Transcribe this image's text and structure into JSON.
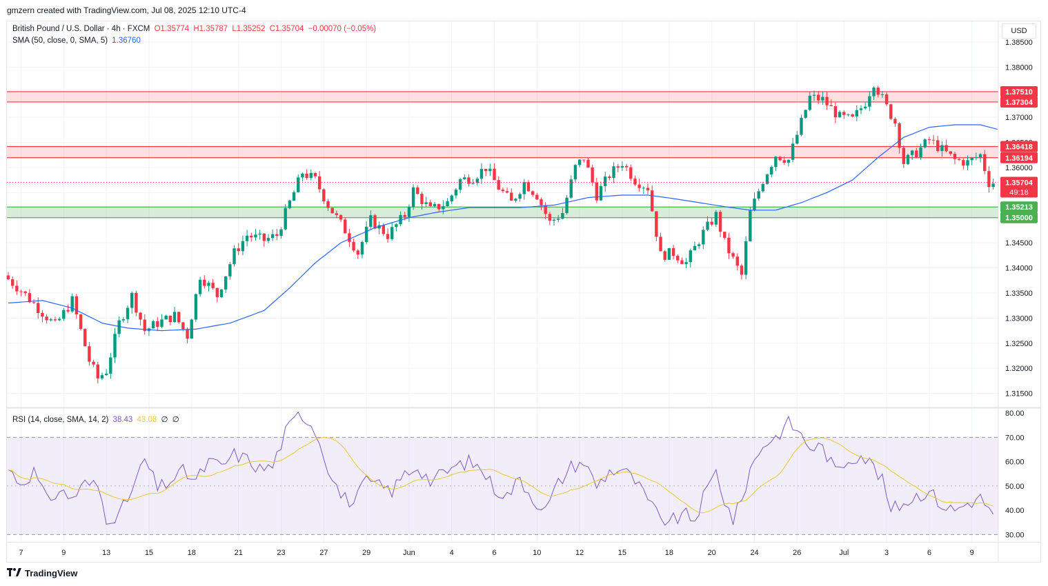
{
  "header": {
    "created_by": "gmzern created with TradingView.com, Jul 08, 2025 12:10 UTC-4"
  },
  "legend": {
    "symbol": "British Pound / U.S. Dollar · 4h · FXCM",
    "open": "O1.35774",
    "high": "H1.35787",
    "low": "L1.35252",
    "close": "C1.35704",
    "change": "−0.00070 (−0.05%)",
    "sma_label": "SMA (50, close, 0, SMA, 5)",
    "sma_value": "1.36760",
    "rsi_label": "RSI (14, close, SMA, 14, 2)",
    "rsi_value": "38.43",
    "rsi_ma_value": "43.08",
    "rsi_extra1": "∅",
    "rsi_extra2": "∅"
  },
  "currency_button": "USD",
  "footer": {
    "brand": "TradingView",
    "logo_icon": "tradingview-logo-icon"
  },
  "colors": {
    "up": "#089981",
    "down": "#f23645",
    "sma": "#2962ff",
    "rsi": "#7e57c2",
    "rsi_ma": "#e9c92f",
    "resistance_zone": "#f23645",
    "support_zone": "#4caf50"
  },
  "chart_data": {
    "type": "candlestick",
    "symbol": "GBP/USD",
    "timeframe": "4h",
    "y_ticks": [
      "1.38500",
      "1.38000",
      "1.37500",
      "1.37000",
      "1.36500",
      "1.36000",
      "1.35500",
      "1.35000",
      "1.34500",
      "1.34000",
      "1.33500",
      "1.33000",
      "1.32500",
      "1.32000",
      "1.31500"
    ],
    "ylim": [
      1.3122,
      1.3891
    ],
    "x_ticks": [
      {
        "label": "7",
        "bar": 3
      },
      {
        "label": "9",
        "bar": 13
      },
      {
        "label": "13",
        "bar": 23
      },
      {
        "label": "15",
        "bar": 33
      },
      {
        "label": "18",
        "bar": 43
      },
      {
        "label": "21",
        "bar": 54
      },
      {
        "label": "23",
        "bar": 64
      },
      {
        "label": "27",
        "bar": 74
      },
      {
        "label": "29",
        "bar": 84
      },
      {
        "label": "Jun",
        "bar": 94
      },
      {
        "label": "4",
        "bar": 104
      },
      {
        "label": "6",
        "bar": 114
      },
      {
        "label": "10",
        "bar": 124
      },
      {
        "label": "12",
        "bar": 134
      },
      {
        "label": "15",
        "bar": 144
      },
      {
        "label": "18",
        "bar": 155
      },
      {
        "label": "20",
        "bar": 165
      },
      {
        "label": "24",
        "bar": 175
      },
      {
        "label": "26",
        "bar": 185
      },
      {
        "label": "Jul",
        "bar": 196
      },
      {
        "label": "3",
        "bar": 206
      },
      {
        "label": "6",
        "bar": 216
      },
      {
        "label": "9",
        "bar": 226
      }
    ],
    "anchors": [
      [
        0,
        1.3385
      ],
      [
        4,
        1.3355
      ],
      [
        8,
        1.332
      ],
      [
        12,
        1.3285
      ],
      [
        16,
        1.3335
      ],
      [
        20,
        1.3215
      ],
      [
        22,
        1.318
      ],
      [
        24,
        1.3195
      ],
      [
        27,
        1.329
      ],
      [
        30,
        1.3345
      ],
      [
        33,
        1.3275
      ],
      [
        36,
        1.329
      ],
      [
        40,
        1.3305
      ],
      [
        43,
        1.3265
      ],
      [
        46,
        1.3385
      ],
      [
        50,
        1.3345
      ],
      [
        54,
        1.343
      ],
      [
        57,
        1.3465
      ],
      [
        61,
        1.3455
      ],
      [
        64,
        1.3465
      ],
      [
        67,
        1.353
      ],
      [
        70,
        1.359
      ],
      [
        73,
        1.3575
      ],
      [
        76,
        1.3525
      ],
      [
        80,
        1.3475
      ],
      [
        83,
        1.343
      ],
      [
        86,
        1.3495
      ],
      [
        90,
        1.3465
      ],
      [
        94,
        1.3505
      ],
      [
        96,
        1.3555
      ],
      [
        100,
        1.3515
      ],
      [
        104,
        1.353
      ],
      [
        107,
        1.3575
      ],
      [
        110,
        1.358
      ],
      [
        113,
        1.36
      ],
      [
        116,
        1.356
      ],
      [
        119,
        1.353
      ],
      [
        122,
        1.357
      ],
      [
        125,
        1.3545
      ],
      [
        128,
        1.349
      ],
      [
        131,
        1.351
      ],
      [
        134,
        1.36
      ],
      [
        136,
        1.362
      ],
      [
        139,
        1.3545
      ],
      [
        142,
        1.3585
      ],
      [
        145,
        1.361
      ],
      [
        148,
        1.3575
      ],
      [
        151,
        1.356
      ],
      [
        154,
        1.3425
      ],
      [
        157,
        1.343
      ],
      [
        160,
        1.341
      ],
      [
        164,
        1.347
      ],
      [
        167,
        1.3505
      ],
      [
        169,
        1.345
      ],
      [
        172,
        1.34
      ],
      [
        173,
        1.3385
      ],
      [
        175,
        1.351
      ],
      [
        178,
        1.3575
      ],
      [
        181,
        1.3625
      ],
      [
        184,
        1.3615
      ],
      [
        186,
        1.3665
      ],
      [
        189,
        1.374
      ],
      [
        192,
        1.3735
      ],
      [
        196,
        1.37
      ],
      [
        199,
        1.3695
      ],
      [
        202,
        1.373
      ],
      [
        204,
        1.377
      ],
      [
        207,
        1.372
      ],
      [
        209,
        1.369
      ],
      [
        211,
        1.361
      ],
      [
        214,
        1.363
      ],
      [
        217,
        1.3655
      ],
      [
        220,
        1.3635
      ],
      [
        223,
        1.3615
      ],
      [
        226,
        1.361
      ],
      [
        229,
        1.3625
      ],
      [
        231,
        1.357
      ]
    ],
    "bars_visible": 232,
    "sma": {
      "name": "SMA (50, close, 0, SMA, 5)",
      "last": 1.3676,
      "anchors": [
        [
          0,
          1.333
        ],
        [
          8,
          1.3335
        ],
        [
          15,
          1.332
        ],
        [
          22,
          1.329
        ],
        [
          28,
          1.328
        ],
        [
          36,
          1.3275
        ],
        [
          44,
          1.3278
        ],
        [
          52,
          1.329
        ],
        [
          60,
          1.3315
        ],
        [
          66,
          1.336
        ],
        [
          72,
          1.341
        ],
        [
          78,
          1.345
        ],
        [
          86,
          1.348
        ],
        [
          94,
          1.35
        ],
        [
          100,
          1.351
        ],
        [
          108,
          1.352
        ],
        [
          114,
          1.352
        ],
        [
          120,
          1.352
        ],
        [
          128,
          1.3525
        ],
        [
          136,
          1.354
        ],
        [
          144,
          1.3545
        ],
        [
          150,
          1.3545
        ],
        [
          156,
          1.3538
        ],
        [
          162,
          1.353
        ],
        [
          168,
          1.3522
        ],
        [
          174,
          1.3515
        ],
        [
          180,
          1.3515
        ],
        [
          186,
          1.353
        ],
        [
          192,
          1.355
        ],
        [
          198,
          1.3575
        ],
        [
          204,
          1.362
        ],
        [
          210,
          1.366
        ],
        [
          216,
          1.368
        ],
        [
          222,
          1.3685
        ],
        [
          228,
          1.3685
        ],
        [
          232,
          1.3676
        ]
      ]
    },
    "levels": [
      {
        "name": "resistance_upper",
        "top": 1.3751,
        "bottom": 1.37304,
        "top_label": "1.37510",
        "bottom_label": "1.37304"
      },
      {
        "name": "resistance_lower",
        "top": 1.36418,
        "bottom": 1.36194,
        "top_label": "1.36418",
        "bottom_label": "1.36194"
      },
      {
        "name": "support",
        "top": 1.35213,
        "bottom": 1.35,
        "top_label": "1.35213",
        "bottom_label": "1.35000"
      }
    ],
    "last_price": {
      "value": 1.35704,
      "label": "1.35704",
      "countdown": "49:18"
    },
    "rsi": {
      "name": "RSI (14, close, SMA, 14, 2)",
      "ylim": [
        27,
        82
      ],
      "y_ticks": [
        "80.00",
        "70.00",
        "60.00",
        "50.00",
        "40.00",
        "30.00"
      ],
      "band": [
        30,
        70
      ],
      "last": 38.43,
      "ma_last": 43.08,
      "anchors": [
        [
          0,
          57
        ],
        [
          3,
          51
        ],
        [
          6,
          56
        ],
        [
          9,
          44
        ],
        [
          12,
          48
        ],
        [
          15,
          45
        ],
        [
          18,
          51
        ],
        [
          21,
          50
        ],
        [
          23,
          37
        ],
        [
          26,
          38
        ],
        [
          29,
          48
        ],
        [
          32,
          61
        ],
        [
          35,
          49
        ],
        [
          38,
          52
        ],
        [
          41,
          56
        ],
        [
          44,
          52
        ],
        [
          47,
          60
        ],
        [
          50,
          58
        ],
        [
          53,
          63
        ],
        [
          56,
          61
        ],
        [
          59,
          57
        ],
        [
          62,
          58
        ],
        [
          65,
          72
        ],
        [
          68,
          79
        ],
        [
          70,
          78
        ],
        [
          72,
          73
        ],
        [
          75,
          58
        ],
        [
          78,
          46
        ],
        [
          81,
          43
        ],
        [
          84,
          52
        ],
        [
          87,
          50
        ],
        [
          90,
          48
        ],
        [
          93,
          55
        ],
        [
          96,
          58
        ],
        [
          99,
          52
        ],
        [
          102,
          55
        ],
        [
          105,
          58
        ],
        [
          108,
          60
        ],
        [
          111,
          57
        ],
        [
          114,
          49
        ],
        [
          117,
          46
        ],
        [
          120,
          53
        ],
        [
          123,
          45
        ],
        [
          126,
          40
        ],
        [
          129,
          51
        ],
        [
          132,
          58
        ],
        [
          135,
          60
        ],
        [
          138,
          50
        ],
        [
          141,
          56
        ],
        [
          144,
          57
        ],
        [
          147,
          52
        ],
        [
          150,
          44
        ],
        [
          153,
          36
        ],
        [
          156,
          36
        ],
        [
          159,
          38
        ],
        [
          161,
          36
        ],
        [
          163,
          45
        ],
        [
          166,
          56
        ],
        [
          168,
          44
        ],
        [
          170,
          36
        ],
        [
          172,
          44
        ],
        [
          174,
          57
        ],
        [
          177,
          67
        ],
        [
          180,
          70
        ],
        [
          183,
          76
        ],
        [
          185,
          73
        ],
        [
          188,
          66
        ],
        [
          191,
          66
        ],
        [
          194,
          56
        ],
        [
          197,
          61
        ],
        [
          200,
          63
        ],
        [
          203,
          58
        ],
        [
          205,
          52
        ],
        [
          207,
          40
        ],
        [
          210,
          43
        ],
        [
          213,
          46
        ],
        [
          216,
          48
        ],
        [
          219,
          42
        ],
        [
          222,
          40
        ],
        [
          225,
          43
        ],
        [
          228,
          45
        ],
        [
          231,
          39
        ]
      ]
    }
  }
}
